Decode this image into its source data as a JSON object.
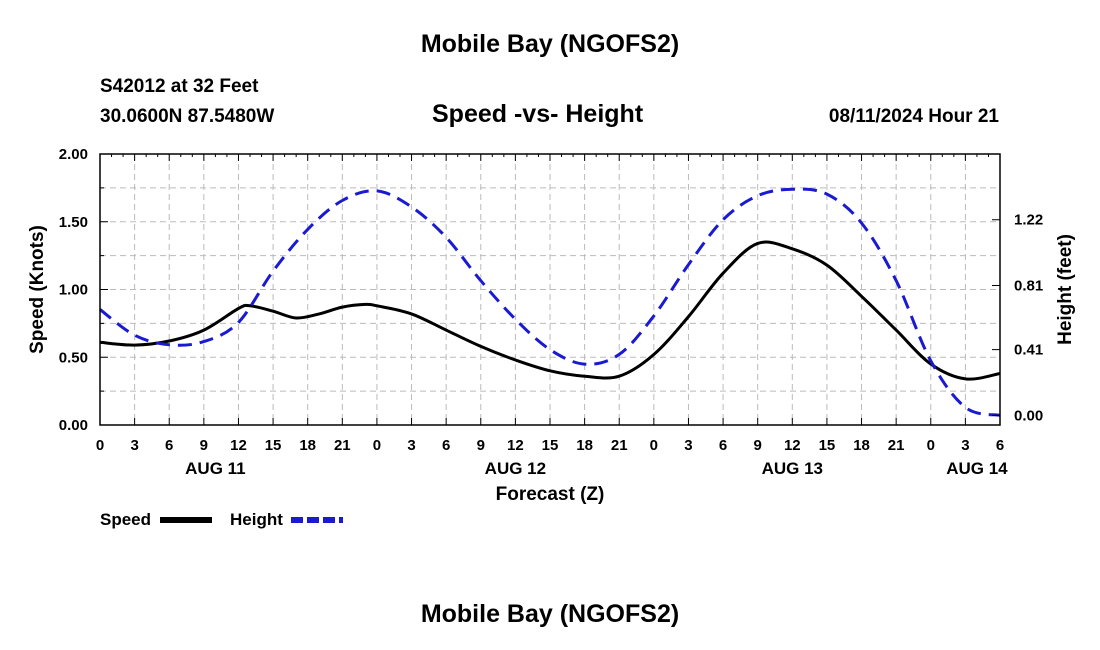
{
  "header": {
    "title": "Mobile Bay (NGOFS2)",
    "station": "S42012 at 32 Feet",
    "coords": "30.0600N  87.5480W",
    "chart_title": "Speed -vs- Height",
    "datetime": "08/11/2024 Hour 21"
  },
  "footer": {
    "title": "Mobile Bay (NGOFS2)"
  },
  "colors": {
    "speed": "#000000",
    "height": "#1a1ad0",
    "grid": "#bbbbbb"
  },
  "chart_data": {
    "type": "line",
    "title": "Speed -vs- Height",
    "xlabel": "Forecast (Z)",
    "ylabel": "Speed (Knots)",
    "y2label": "Height (feet)",
    "xlim": [
      0,
      78
    ],
    "ylim": [
      0,
      2.0
    ],
    "y2lim": [
      -0.06,
      1.63
    ],
    "x_ticks": [
      0,
      3,
      6,
      9,
      12,
      15,
      18,
      21,
      24,
      27,
      30,
      33,
      36,
      39,
      42,
      45,
      48,
      51,
      54,
      57,
      60,
      63,
      66,
      69,
      72,
      75,
      78
    ],
    "x_tick_labels": [
      "0",
      "3",
      "6",
      "9",
      "12",
      "15",
      "18",
      "21",
      "0",
      "3",
      "6",
      "9",
      "12",
      "15",
      "18",
      "21",
      "0",
      "3",
      "6",
      "9",
      "12",
      "15",
      "18",
      "21",
      "0",
      "3",
      "6"
    ],
    "date_labels": [
      {
        "x": 10,
        "label": "AUG 11"
      },
      {
        "x": 36,
        "label": "AUG 12"
      },
      {
        "x": 60,
        "label": "AUG 13"
      },
      {
        "x": 76,
        "label": "AUG 14"
      }
    ],
    "y_ticks": [
      0.0,
      0.5,
      1.0,
      1.5,
      2.0
    ],
    "y_tick_labels": [
      "0.00",
      "0.50",
      "1.00",
      "1.50",
      "2.00"
    ],
    "y2_ticks": [
      0.0,
      0.41,
      0.81,
      1.22
    ],
    "y2_tick_labels": [
      "0.00",
      "0.41",
      "0.81",
      "1.22"
    ],
    "legend": [
      {
        "label": "Speed",
        "style": "solid"
      },
      {
        "label": "Height",
        "style": "dashed"
      }
    ],
    "series": [
      {
        "name": "Speed",
        "axis": "left",
        "x": [
          0,
          3,
          6,
          9,
          12,
          13,
          15,
          17,
          19,
          21,
          23,
          24,
          27,
          30,
          33,
          36,
          39,
          42,
          45,
          48,
          51,
          54,
          57,
          60,
          63,
          66,
          69,
          72,
          75,
          78
        ],
        "values": [
          0.61,
          0.59,
          0.62,
          0.7,
          0.86,
          0.88,
          0.84,
          0.79,
          0.82,
          0.87,
          0.89,
          0.88,
          0.82,
          0.7,
          0.58,
          0.48,
          0.4,
          0.36,
          0.36,
          0.52,
          0.8,
          1.12,
          1.34,
          1.3,
          1.18,
          0.95,
          0.7,
          0.45,
          0.34,
          0.38
        ]
      },
      {
        "name": "Height",
        "axis": "right",
        "x": [
          0,
          3,
          6,
          9,
          12,
          15,
          18,
          21,
          24,
          27,
          30,
          33,
          36,
          39,
          42,
          45,
          48,
          51,
          54,
          57,
          60,
          63,
          66,
          69,
          72,
          75,
          78
        ],
        "values": [
          0.66,
          0.5,
          0.44,
          0.46,
          0.58,
          0.9,
          1.16,
          1.34,
          1.4,
          1.3,
          1.11,
          0.84,
          0.6,
          0.41,
          0.32,
          0.38,
          0.62,
          0.94,
          1.22,
          1.37,
          1.41,
          1.38,
          1.2,
          0.84,
          0.34,
          0.05,
          0.0
        ]
      }
    ]
  }
}
